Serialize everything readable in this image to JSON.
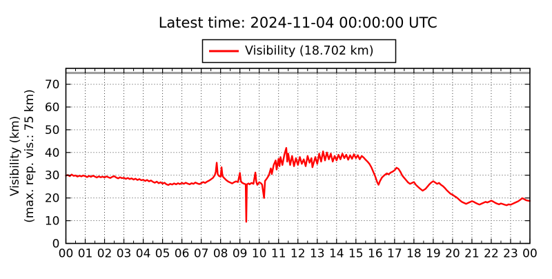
{
  "title": "Latest time: 2024-11-04 00:00:00 UTC",
  "legend": {
    "label": "Visibility (18.702 km)",
    "line_color": "#ff0000"
  },
  "chart_data": {
    "type": "line",
    "title": "Latest time: 2024-11-04 00:00:00 UTC",
    "latest_time": "2024-11-04 00:00:00 UTC",
    "latest_value_km": 18.702,
    "ylabel_lines": [
      "Visibility (km)",
      "(max. rep. vis.: 75 km)"
    ],
    "xlabel": "",
    "xlim": [
      0,
      24
    ],
    "ylim": [
      0,
      77
    ],
    "x_major_ticks": [
      0,
      1,
      2,
      3,
      4,
      5,
      6,
      7,
      8,
      9,
      10,
      11,
      12,
      13,
      14,
      15,
      16,
      17,
      18,
      19,
      20,
      21,
      22,
      23,
      24
    ],
    "x_tick_labels": [
      "00",
      "01",
      "02",
      "03",
      "04",
      "05",
      "06",
      "07",
      "08",
      "09",
      "10",
      "11",
      "12",
      "13",
      "14",
      "15",
      "16",
      "17",
      "18",
      "19",
      "20",
      "21",
      "22",
      "23",
      "00"
    ],
    "x_minor_step": 0.5,
    "y_major_ticks": [
      0,
      10,
      20,
      30,
      40,
      50,
      60,
      70
    ],
    "grid": "dotted",
    "reference_line": {
      "y": 75,
      "color": "#999999",
      "meaning": "max. rep. vis.: 75 km"
    },
    "series": [
      {
        "name": "Visibility (18.702 km)",
        "color": "#ff0000",
        "points": [
          [
            0.0,
            29.8
          ],
          [
            0.1,
            30.1
          ],
          [
            0.2,
            29.6
          ],
          [
            0.3,
            30.3
          ],
          [
            0.4,
            29.7
          ],
          [
            0.5,
            29.9
          ],
          [
            0.6,
            29.4
          ],
          [
            0.7,
            29.8
          ],
          [
            0.8,
            29.5
          ],
          [
            0.9,
            29.9
          ],
          [
            1.0,
            29.6
          ],
          [
            1.1,
            29.2
          ],
          [
            1.2,
            29.7
          ],
          [
            1.3,
            29.3
          ],
          [
            1.4,
            29.8
          ],
          [
            1.5,
            29.4
          ],
          [
            1.6,
            29.0
          ],
          [
            1.7,
            29.5
          ],
          [
            1.8,
            29.1
          ],
          [
            1.9,
            29.4
          ],
          [
            2.0,
            29.0
          ],
          [
            2.1,
            29.5
          ],
          [
            2.2,
            29.1
          ],
          [
            2.3,
            28.8
          ],
          [
            2.4,
            29.3
          ],
          [
            2.5,
            29.6
          ],
          [
            2.6,
            29.0
          ],
          [
            2.7,
            28.6
          ],
          [
            2.8,
            29.1
          ],
          [
            2.9,
            28.7
          ],
          [
            3.0,
            28.9
          ],
          [
            3.1,
            28.4
          ],
          [
            3.2,
            28.8
          ],
          [
            3.3,
            28.3
          ],
          [
            3.4,
            28.6
          ],
          [
            3.5,
            28.1
          ],
          [
            3.6,
            28.5
          ],
          [
            3.7,
            27.9
          ],
          [
            3.8,
            28.3
          ],
          [
            3.9,
            27.8
          ],
          [
            4.0,
            28.0
          ],
          [
            4.1,
            27.5
          ],
          [
            4.2,
            27.9
          ],
          [
            4.3,
            27.3
          ],
          [
            4.4,
            27.7
          ],
          [
            4.5,
            27.1
          ],
          [
            4.6,
            26.7
          ],
          [
            4.7,
            27.2
          ],
          [
            4.8,
            26.5
          ],
          [
            4.9,
            26.9
          ],
          [
            5.0,
            26.3
          ],
          [
            5.1,
            26.7
          ],
          [
            5.2,
            26.0
          ],
          [
            5.3,
            25.7
          ],
          [
            5.4,
            26.2
          ],
          [
            5.5,
            25.9
          ],
          [
            5.6,
            26.4
          ],
          [
            5.7,
            26.0
          ],
          [
            5.8,
            26.5
          ],
          [
            5.9,
            26.1
          ],
          [
            6.0,
            26.6
          ],
          [
            6.1,
            26.2
          ],
          [
            6.2,
            26.7
          ],
          [
            6.3,
            26.3
          ],
          [
            6.4,
            26.0
          ],
          [
            6.5,
            26.5
          ],
          [
            6.6,
            26.2
          ],
          [
            6.7,
            26.8
          ],
          [
            6.8,
            26.4
          ],
          [
            6.9,
            26.1
          ],
          [
            7.0,
            26.5
          ],
          [
            7.1,
            27.0
          ],
          [
            7.2,
            26.6
          ],
          [
            7.3,
            27.2
          ],
          [
            7.4,
            27.6
          ],
          [
            7.5,
            28.2
          ],
          [
            7.6,
            28.8
          ],
          [
            7.7,
            30.0
          ],
          [
            7.75,
            31.5
          ],
          [
            7.8,
            35.5
          ],
          [
            7.85,
            30.5
          ],
          [
            7.9,
            29.8
          ],
          [
            8.0,
            29.3
          ],
          [
            8.05,
            33.5
          ],
          [
            8.1,
            29.6
          ],
          [
            8.2,
            28.6
          ],
          [
            8.3,
            27.8
          ],
          [
            8.4,
            27.2
          ],
          [
            8.5,
            26.8
          ],
          [
            8.6,
            26.4
          ],
          [
            8.7,
            26.9
          ],
          [
            8.8,
            27.3
          ],
          [
            8.9,
            27.0
          ],
          [
            9.0,
            31.0
          ],
          [
            9.05,
            27.4
          ],
          [
            9.1,
            26.8
          ],
          [
            9.2,
            26.3
          ],
          [
            9.3,
            26.0
          ],
          [
            9.33,
            9.5
          ],
          [
            9.36,
            26.0
          ],
          [
            9.45,
            26.4
          ],
          [
            9.5,
            26.0
          ],
          [
            9.6,
            26.6
          ],
          [
            9.7,
            26.2
          ],
          [
            9.8,
            31.2
          ],
          [
            9.85,
            27.0
          ],
          [
            9.9,
            25.8
          ],
          [
            10.0,
            26.9
          ],
          [
            10.1,
            26.4
          ],
          [
            10.15,
            25.8
          ],
          [
            10.25,
            20.0
          ],
          [
            10.3,
            27.5
          ],
          [
            10.4,
            28.6
          ],
          [
            10.5,
            30.0
          ],
          [
            10.6,
            33.0
          ],
          [
            10.65,
            30.5
          ],
          [
            10.75,
            34.5
          ],
          [
            10.85,
            36.5
          ],
          [
            10.9,
            32.5
          ],
          [
            11.0,
            37.2
          ],
          [
            11.05,
            34.0
          ],
          [
            11.1,
            38.0
          ],
          [
            11.2,
            34.5
          ],
          [
            11.3,
            39.0
          ],
          [
            11.4,
            42.0
          ],
          [
            11.45,
            36.0
          ],
          [
            11.5,
            39.5
          ],
          [
            11.6,
            34.5
          ],
          [
            11.7,
            38.5
          ],
          [
            11.8,
            34.0
          ],
          [
            11.9,
            37.5
          ],
          [
            12.0,
            34.5
          ],
          [
            12.1,
            38.0
          ],
          [
            12.2,
            35.0
          ],
          [
            12.3,
            37.0
          ],
          [
            12.4,
            34.0
          ],
          [
            12.5,
            38.5
          ],
          [
            12.6,
            35.5
          ],
          [
            12.7,
            37.5
          ],
          [
            12.75,
            33.5
          ],
          [
            12.9,
            38.0
          ],
          [
            13.0,
            35.0
          ],
          [
            13.1,
            39.5
          ],
          [
            13.2,
            36.0
          ],
          [
            13.3,
            40.5
          ],
          [
            13.4,
            36.5
          ],
          [
            13.5,
            40.0
          ],
          [
            13.6,
            37.0
          ],
          [
            13.7,
            39.5
          ],
          [
            13.8,
            36.0
          ],
          [
            13.9,
            38.5
          ],
          [
            14.0,
            36.5
          ],
          [
            14.1,
            39.0
          ],
          [
            14.2,
            37.0
          ],
          [
            14.3,
            39.5
          ],
          [
            14.4,
            37.5
          ],
          [
            14.5,
            39.0
          ],
          [
            14.6,
            36.8
          ],
          [
            14.7,
            38.8
          ],
          [
            14.8,
            37.2
          ],
          [
            14.9,
            39.2
          ],
          [
            15.0,
            37.5
          ],
          [
            15.1,
            38.8
          ],
          [
            15.2,
            37.0
          ],
          [
            15.3,
            38.5
          ],
          [
            15.4,
            37.8
          ],
          [
            15.5,
            36.8
          ],
          [
            15.6,
            36.0
          ],
          [
            15.7,
            35.0
          ],
          [
            15.8,
            33.5
          ],
          [
            15.9,
            31.5
          ],
          [
            16.0,
            29.5
          ],
          [
            16.1,
            27.0
          ],
          [
            16.17,
            25.8
          ],
          [
            16.25,
            27.5
          ],
          [
            16.35,
            29.0
          ],
          [
            16.5,
            30.2
          ],
          [
            16.6,
            30.8
          ],
          [
            16.7,
            30.4
          ],
          [
            16.8,
            31.2
          ],
          [
            16.9,
            31.6
          ],
          [
            17.0,
            32.2
          ],
          [
            17.1,
            33.3
          ],
          [
            17.2,
            32.8
          ],
          [
            17.3,
            31.5
          ],
          [
            17.4,
            29.8
          ],
          [
            17.5,
            28.8
          ],
          [
            17.6,
            27.8
          ],
          [
            17.7,
            26.8
          ],
          [
            17.8,
            26.2
          ],
          [
            17.9,
            26.6
          ],
          [
            18.0,
            27.0
          ],
          [
            18.1,
            25.8
          ],
          [
            18.2,
            25.0
          ],
          [
            18.3,
            24.2
          ],
          [
            18.45,
            23.2
          ],
          [
            18.6,
            24.0
          ],
          [
            18.7,
            25.0
          ],
          [
            18.8,
            26.0
          ],
          [
            18.9,
            26.8
          ],
          [
            19.0,
            27.4
          ],
          [
            19.1,
            26.8
          ],
          [
            19.2,
            26.2
          ],
          [
            19.3,
            26.6
          ],
          [
            19.4,
            25.8
          ],
          [
            19.5,
            25.2
          ],
          [
            19.6,
            24.4
          ],
          [
            19.7,
            23.4
          ],
          [
            19.8,
            22.6
          ],
          [
            19.9,
            21.8
          ],
          [
            20.0,
            21.4
          ],
          [
            20.1,
            20.8
          ],
          [
            20.2,
            20.3
          ],
          [
            20.3,
            19.6
          ],
          [
            20.4,
            18.8
          ],
          [
            20.5,
            18.2
          ],
          [
            20.6,
            17.8
          ],
          [
            20.7,
            17.4
          ],
          [
            20.8,
            17.8
          ],
          [
            20.9,
            18.2
          ],
          [
            21.0,
            18.6
          ],
          [
            21.1,
            18.3
          ],
          [
            21.2,
            17.8
          ],
          [
            21.3,
            17.4
          ],
          [
            21.4,
            17.1
          ],
          [
            21.5,
            17.5
          ],
          [
            21.6,
            17.9
          ],
          [
            21.7,
            18.3
          ],
          [
            21.8,
            18.0
          ],
          [
            21.9,
            18.4
          ],
          [
            22.0,
            18.8
          ],
          [
            22.1,
            18.4
          ],
          [
            22.2,
            17.9
          ],
          [
            22.3,
            17.5
          ],
          [
            22.4,
            17.2
          ],
          [
            22.5,
            17.6
          ],
          [
            22.6,
            17.3
          ],
          [
            22.7,
            17.0
          ],
          [
            22.8,
            16.8
          ],
          [
            22.9,
            17.2
          ],
          [
            23.0,
            17.0
          ],
          [
            23.1,
            17.4
          ],
          [
            23.2,
            17.8
          ],
          [
            23.3,
            18.2
          ],
          [
            23.4,
            18.6
          ],
          [
            23.5,
            19.2
          ],
          [
            23.6,
            19.9
          ],
          [
            23.7,
            19.5
          ],
          [
            23.8,
            19.0
          ],
          [
            23.9,
            18.8
          ],
          [
            24.0,
            18.702
          ]
        ]
      }
    ]
  }
}
